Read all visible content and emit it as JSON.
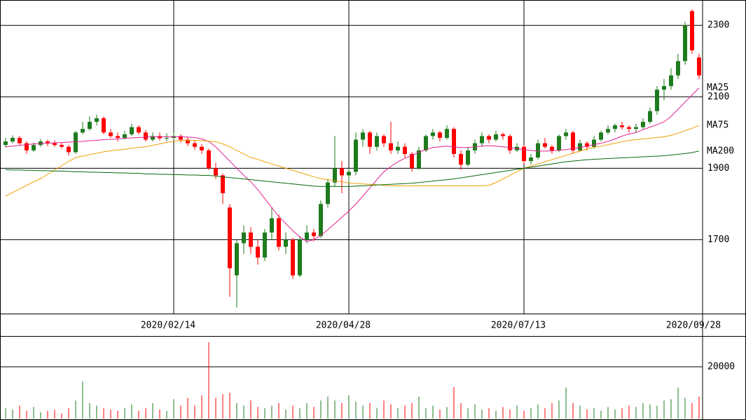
{
  "chart_data": [
    {
      "type": "candlestick",
      "categories": [
        null,
        null,
        null,
        null,
        null,
        null,
        null,
        null,
        null,
        null,
        null,
        null,
        null,
        null,
        null,
        null,
        null,
        null,
        null,
        null,
        null,
        null,
        null,
        null,
        "2020/02/14",
        null,
        null,
        null,
        null,
        null,
        null,
        null,
        null,
        null,
        null,
        null,
        null,
        null,
        null,
        null,
        null,
        null,
        null,
        null,
        null,
        null,
        null,
        null,
        null,
        "2020/04/28",
        null,
        null,
        null,
        null,
        null,
        null,
        null,
        null,
        null,
        null,
        null,
        null,
        null,
        null,
        null,
        null,
        null,
        null,
        null,
        null,
        null,
        null,
        null,
        null,
        "2020/07/13",
        null,
        null,
        null,
        null,
        null,
        null,
        null,
        null,
        null,
        null,
        null,
        null,
        null,
        null,
        null,
        null,
        null,
        null,
        null,
        null,
        null,
        null,
        null,
        null,
        "2020/09/28"
      ],
      "ohlc": [
        [
          1965,
          1985,
          1958,
          1975
        ],
        [
          1975,
          1992,
          1970,
          1985
        ],
        [
          1985,
          1990,
          1965,
          1970
        ],
        [
          1970,
          1975,
          1940,
          1950
        ],
        [
          1950,
          1972,
          1945,
          1965
        ],
        [
          1965,
          1982,
          1960,
          1975
        ],
        [
          1975,
          1980,
          1962,
          1970
        ],
        [
          1970,
          1978,
          1960,
          1965
        ],
        [
          1965,
          1972,
          1955,
          1960
        ],
        [
          1960,
          1965,
          1935,
          1945
        ],
        [
          1945,
          2005,
          1940,
          2000
        ],
        [
          2000,
          2030,
          1995,
          2010
        ],
        [
          2010,
          2045,
          2005,
          2030
        ],
        [
          2030,
          2050,
          2020,
          2040
        ],
        [
          2040,
          2045,
          1995,
          2000
        ],
        [
          2000,
          2010,
          1985,
          1990
        ],
        [
          1990,
          2000,
          1975,
          1985
        ],
        [
          1985,
          2005,
          1980,
          1995
        ],
        [
          1995,
          2025,
          1990,
          2015
        ],
        [
          2015,
          2020,
          1995,
          2000
        ],
        [
          2000,
          2008,
          1975,
          1980
        ],
        [
          1980,
          2000,
          1975,
          1990
        ],
        [
          1990,
          2000,
          1978,
          1984
        ],
        [
          1984,
          1998,
          1975,
          1985
        ],
        [
          1985,
          2000,
          1978,
          1990
        ],
        [
          1990,
          1995,
          1972,
          1980
        ],
        [
          1980,
          1988,
          1962,
          1970
        ],
        [
          1970,
          1978,
          1952,
          1960
        ],
        [
          1960,
          1968,
          1940,
          1950
        ],
        [
          1950,
          1955,
          1895,
          1900
        ],
        [
          1900,
          1915,
          1870,
          1880
        ],
        [
          1880,
          1885,
          1800,
          1830
        ],
        [
          1790,
          1800,
          1540,
          1620
        ],
        [
          1600,
          1700,
          1510,
          1690
        ],
        [
          1690,
          1740,
          1660,
          1720
        ],
        [
          1720,
          1735,
          1660,
          1680
        ],
        [
          1680,
          1700,
          1630,
          1650
        ],
        [
          1650,
          1730,
          1640,
          1720
        ],
        [
          1720,
          1790,
          1700,
          1760
        ],
        [
          1760,
          1770,
          1670,
          1680
        ],
        [
          1680,
          1720,
          1660,
          1700
        ],
        [
          1700,
          1705,
          1590,
          1600
        ],
        [
          1600,
          1710,
          1595,
          1700
        ],
        [
          1700,
          1740,
          1690,
          1720
        ],
        [
          1720,
          1730,
          1695,
          1710
        ],
        [
          1710,
          1810,
          1705,
          1800
        ],
        [
          1800,
          1870,
          1790,
          1860
        ],
        [
          1860,
          1990,
          1850,
          1900
        ],
        [
          1900,
          1920,
          1830,
          1880
        ],
        [
          1880,
          1900,
          1860,
          1890
        ],
        [
          1890,
          2000,
          1880,
          1980
        ],
        [
          1980,
          2010,
          1960,
          2000
        ],
        [
          2000,
          2005,
          1940,
          1960
        ],
        [
          1960,
          2000,
          1950,
          1990
        ],
        [
          1990,
          1995,
          1960,
          1970
        ],
        [
          1970,
          2030,
          1940,
          1950
        ],
        [
          1950,
          1975,
          1940,
          1960
        ],
        [
          1960,
          1970,
          1930,
          1940
        ],
        [
          1940,
          1945,
          1890,
          1900
        ],
        [
          1900,
          1960,
          1895,
          1950
        ],
        [
          1950,
          1995,
          1945,
          1990
        ],
        [
          1990,
          2010,
          1980,
          2000
        ],
        [
          2000,
          2005,
          1975,
          1985
        ],
        [
          1985,
          2020,
          1980,
          2010
        ],
        [
          2010,
          2015,
          1930,
          1940
        ],
        [
          1940,
          1950,
          1895,
          1910
        ],
        [
          1910,
          1960,
          1905,
          1950
        ],
        [
          1950,
          1980,
          1940,
          1970
        ],
        [
          1970,
          2000,
          1960,
          1990
        ],
        [
          1990,
          1995,
          1970,
          1980
        ],
        [
          1980,
          2005,
          1975,
          1995
        ],
        [
          1995,
          2000,
          1980,
          1990
        ],
        [
          1990,
          1995,
          1940,
          1950
        ],
        [
          1950,
          1970,
          1945,
          1960
        ],
        [
          1960,
          1965,
          1910,
          1920
        ],
        [
          1920,
          1940,
          1910,
          1930
        ],
        [
          1930,
          1980,
          1925,
          1970
        ],
        [
          1970,
          1985,
          1955,
          1960
        ],
        [
          1960,
          1965,
          1940,
          1950
        ],
        [
          1950,
          1995,
          1945,
          1990
        ],
        [
          1990,
          2010,
          1980,
          2000
        ],
        [
          2000,
          2005,
          1940,
          1950
        ],
        [
          1950,
          1980,
          1945,
          1970
        ],
        [
          1970,
          1975,
          1950,
          1960
        ],
        [
          1960,
          1990,
          1955,
          1980
        ],
        [
          1980,
          2005,
          1975,
          2000
        ],
        [
          2000,
          2020,
          1995,
          2010
        ],
        [
          2010,
          2025,
          2000,
          2020
        ],
        [
          2020,
          2030,
          2008,
          2015
        ],
        [
          2015,
          2020,
          2000,
          2010
        ],
        [
          2010,
          2025,
          2000,
          2015
        ],
        [
          2015,
          2040,
          2010,
          2030
        ],
        [
          2030,
          2070,
          2025,
          2060
        ],
        [
          2060,
          2130,
          2050,
          2120
        ],
        [
          2120,
          2150,
          2090,
          2130
        ],
        [
          2130,
          2180,
          2120,
          2160
        ],
        [
          2160,
          2220,
          2150,
          2200
        ],
        [
          2200,
          2310,
          2190,
          2300
        ],
        [
          2340,
          2345,
          2220,
          2230
        ],
        [
          2210,
          2220,
          2150,
          2160
        ]
      ],
      "up_color": "#1e7b1e",
      "down_color": "#ff0000",
      "series": [
        {
          "name": "MA25",
          "color": "#e0208f",
          "values": [
            1960,
            1962,
            1964,
            1966,
            1968,
            1969,
            1970,
            1971,
            1972,
            1973,
            1974,
            1975,
            1977,
            1978,
            1980,
            1981,
            1982,
            1984,
            1985,
            1986,
            1987,
            1988,
            1988,
            1988,
            1988,
            1988,
            1987,
            1986,
            1982,
            1975,
            1960,
            1940,
            1920,
            1900,
            1880,
            1862,
            1840,
            1815,
            1790,
            1765,
            1745,
            1725,
            1708,
            1695,
            1700,
            1712,
            1728,
            1745,
            1763,
            1780,
            1800,
            1822,
            1845,
            1868,
            1890,
            1905,
            1918,
            1928,
            1935,
            1945,
            1952,
            1958,
            1960,
            1962,
            1960,
            1958,
            1958,
            1960,
            1962,
            1963,
            1962,
            1960,
            1958,
            1955,
            1952,
            1950,
            1948,
            1948,
            1949,
            1950,
            1952,
            1955,
            1958,
            1962,
            1966,
            1970,
            1975,
            1982,
            1990,
            1996,
            2000,
            2008,
            2015,
            2022,
            2030,
            2045,
            2065,
            2085,
            2105,
            2125
          ]
        },
        {
          "name": "MA75",
          "color": "#f0a000",
          "values": [
            1822,
            1832,
            1842,
            1852,
            1862,
            1871,
            1883,
            1895,
            1907,
            1919,
            1930,
            1934,
            1938,
            1942,
            1946,
            1949,
            1951,
            1953,
            1956,
            1958,
            1960,
            1964,
            1968,
            1972,
            1975,
            1978,
            1978,
            1978,
            1977,
            1976,
            1974,
            1968,
            1960,
            1950,
            1940,
            1930,
            1925,
            1918,
            1912,
            1906,
            1900,
            1894,
            1888,
            1882,
            1876,
            1871,
            1868,
            1865,
            1862,
            1859,
            1857,
            1856,
            1855,
            1854,
            1852,
            1851,
            1851,
            1851,
            1851,
            1851,
            1851,
            1851,
            1851,
            1851,
            1851,
            1851,
            1851,
            1851,
            1851,
            1852,
            1860,
            1870,
            1880,
            1890,
            1900,
            1906,
            1912,
            1918,
            1924,
            1930,
            1936,
            1942,
            1948,
            1954,
            1959,
            1962,
            1966,
            1970,
            1974,
            1978,
            1980,
            1982,
            1984,
            1986,
            1988,
            1992,
            1998,
            2005,
            2012,
            2020
          ]
        },
        {
          "name": "MA200",
          "color": "#0a6a0a",
          "values": [
            1896,
            1895,
            1895,
            1894,
            1894,
            1893,
            1893,
            1892,
            1892,
            1891,
            1890,
            1890,
            1889,
            1889,
            1888,
            1888,
            1887,
            1887,
            1886,
            1886,
            1884,
            1884,
            1883,
            1883,
            1882,
            1882,
            1881,
            1881,
            1880,
            1880,
            1878,
            1876,
            1874,
            1872,
            1870,
            1868,
            1866,
            1864,
            1862,
            1860,
            1858,
            1856,
            1854,
            1852,
            1850,
            1849,
            1849,
            1849,
            1849,
            1849,
            1850,
            1851,
            1852,
            1853,
            1854,
            1855,
            1856,
            1857,
            1858,
            1860,
            1862,
            1864,
            1866,
            1868,
            1870,
            1873,
            1876,
            1879,
            1882,
            1885,
            1888,
            1891,
            1894,
            1897,
            1900,
            1903,
            1906,
            1909,
            1912,
            1915,
            1918,
            1920,
            1922,
            1924,
            1925,
            1926,
            1927,
            1928,
            1929,
            1930,
            1931,
            1932,
            1933,
            1934,
            1935,
            1937,
            1939,
            1941,
            1944,
            1948
          ]
        }
      ],
      "ylim": [
        1493,
        2371
      ],
      "yticks": [
        1700,
        1900,
        2100,
        2300
      ],
      "grid": true
    },
    {
      "type": "bar",
      "values": [
        4000,
        3500,
        5000,
        3000,
        4500,
        2500,
        3000,
        3500,
        2000,
        4000,
        7000,
        14300,
        6000,
        5000,
        4000,
        3500,
        3000,
        4000,
        5500,
        3000,
        4000,
        6000,
        3500,
        3000,
        7500,
        5000,
        8000,
        5000,
        9000,
        29500,
        8000,
        9500,
        10000,
        6000,
        5000,
        7000,
        4500,
        4000,
        5000,
        6000,
        3500,
        5000,
        4000,
        6000,
        4500,
        7000,
        8500,
        7000,
        6000,
        9000,
        6500,
        5000,
        6000,
        4000,
        7000,
        5500,
        4000,
        5000,
        6000,
        8500,
        4000,
        5000,
        3500,
        4500,
        12200,
        6000,
        4000,
        5500,
        3500,
        4000,
        3000,
        4500,
        3500,
        5000,
        3000,
        4000,
        5500,
        4000,
        6000,
        7000,
        12000,
        6000,
        5000,
        3500,
        4000,
        3000,
        4500,
        3500,
        4000,
        5000,
        4500,
        6000,
        5500,
        5000,
        7000,
        7500,
        12000,
        8000,
        6000,
        8500
      ],
      "up_color": "#1e7b1e",
      "down_color": "#ff0000",
      "ylim": [
        0,
        31892
      ],
      "yticks": [
        20000
      ],
      "grid": true
    }
  ]
}
